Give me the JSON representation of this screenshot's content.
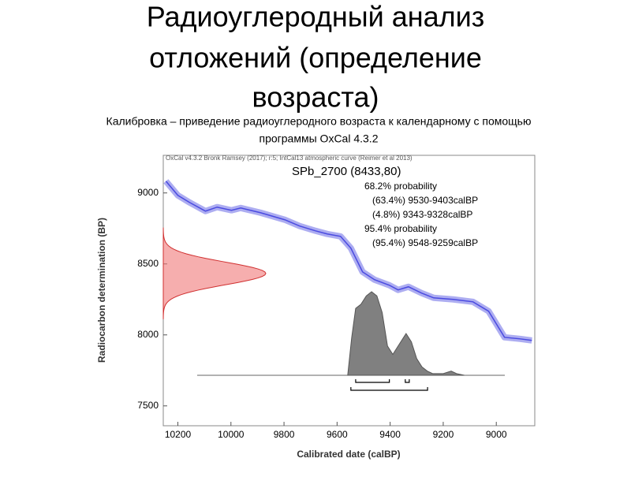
{
  "title": [
    "Радиоуглеродный анализ",
    "отложений (определение",
    "возраста)"
  ],
  "subtitle": [
    "Калибровка – приведение радиоуглеродного возраста к календарному с помощью",
    "программы OxCal 4.3.2"
  ],
  "chart_data": {
    "type": "calibration",
    "header": "OxCal v4.3.2 Bronk Ramsey (2017); r:5; IntCal13 atmospheric curve (Reimer et al 2013)",
    "sample_label": "SPb_2700 (8433,80)",
    "mean": 8433,
    "sd": 80,
    "annotations": [
      "68.2% probability",
      "(63.4%) 9530-9403calBP",
      "(4.8%) 9343-9328calBP",
      "95.4% probability",
      "(95.4%) 9548-9259calBP"
    ],
    "xlabel": "Calibrated date (calBP)",
    "ylabel": "Radiocarbon determination (BP)",
    "xlim": [
      10255,
      8855
    ],
    "ylim": [
      7360,
      9265
    ],
    "xticks": [
      10200,
      10000,
      9800,
      9600,
      9400,
      9200,
      9000
    ],
    "yticks": [
      7500,
      8000,
      8500,
      9000
    ],
    "curve": {
      "color": "#4a4ae0",
      "x": [
        10245,
        10200,
        10156,
        10096,
        10052,
        9998,
        9963,
        9889,
        9797,
        9741,
        9681,
        9637,
        9587,
        9548,
        9504,
        9459,
        9403,
        9370,
        9331,
        9281,
        9236,
        9162,
        9088,
        9029,
        8969,
        8910,
        8866
      ],
      "values": [
        9083,
        8983,
        8933,
        8872,
        8900,
        8878,
        8894,
        8861,
        8811,
        8767,
        8733,
        8711,
        8694,
        8611,
        8444,
        8389,
        8350,
        8317,
        8339,
        8294,
        8261,
        8250,
        8233,
        8167,
        7983,
        7972,
        7961
      ]
    },
    "density": {
      "color": "#808080",
      "x": [
        9560,
        9545,
        9530,
        9510,
        9490,
        9470,
        9450,
        9430,
        9410,
        9390,
        9370,
        9350,
        9340,
        9320,
        9300,
        9280,
        9260,
        9240,
        9200,
        9170,
        9150,
        9120
      ],
      "values": [
        0,
        0.45,
        0.8,
        0.85,
        0.95,
        1,
        0.95,
        0.75,
        0.35,
        0.25,
        0.35,
        0.45,
        0.5,
        0.4,
        0.2,
        0.1,
        0.05,
        0.02,
        0.02,
        0.05,
        0.02,
        0
      ]
    },
    "ranges68": [
      [
        9530,
        9403
      ],
      [
        9343,
        9328
      ]
    ],
    "ranges95": [
      [
        9548,
        9259
      ]
    ],
    "sample_color": "#f07878"
  }
}
